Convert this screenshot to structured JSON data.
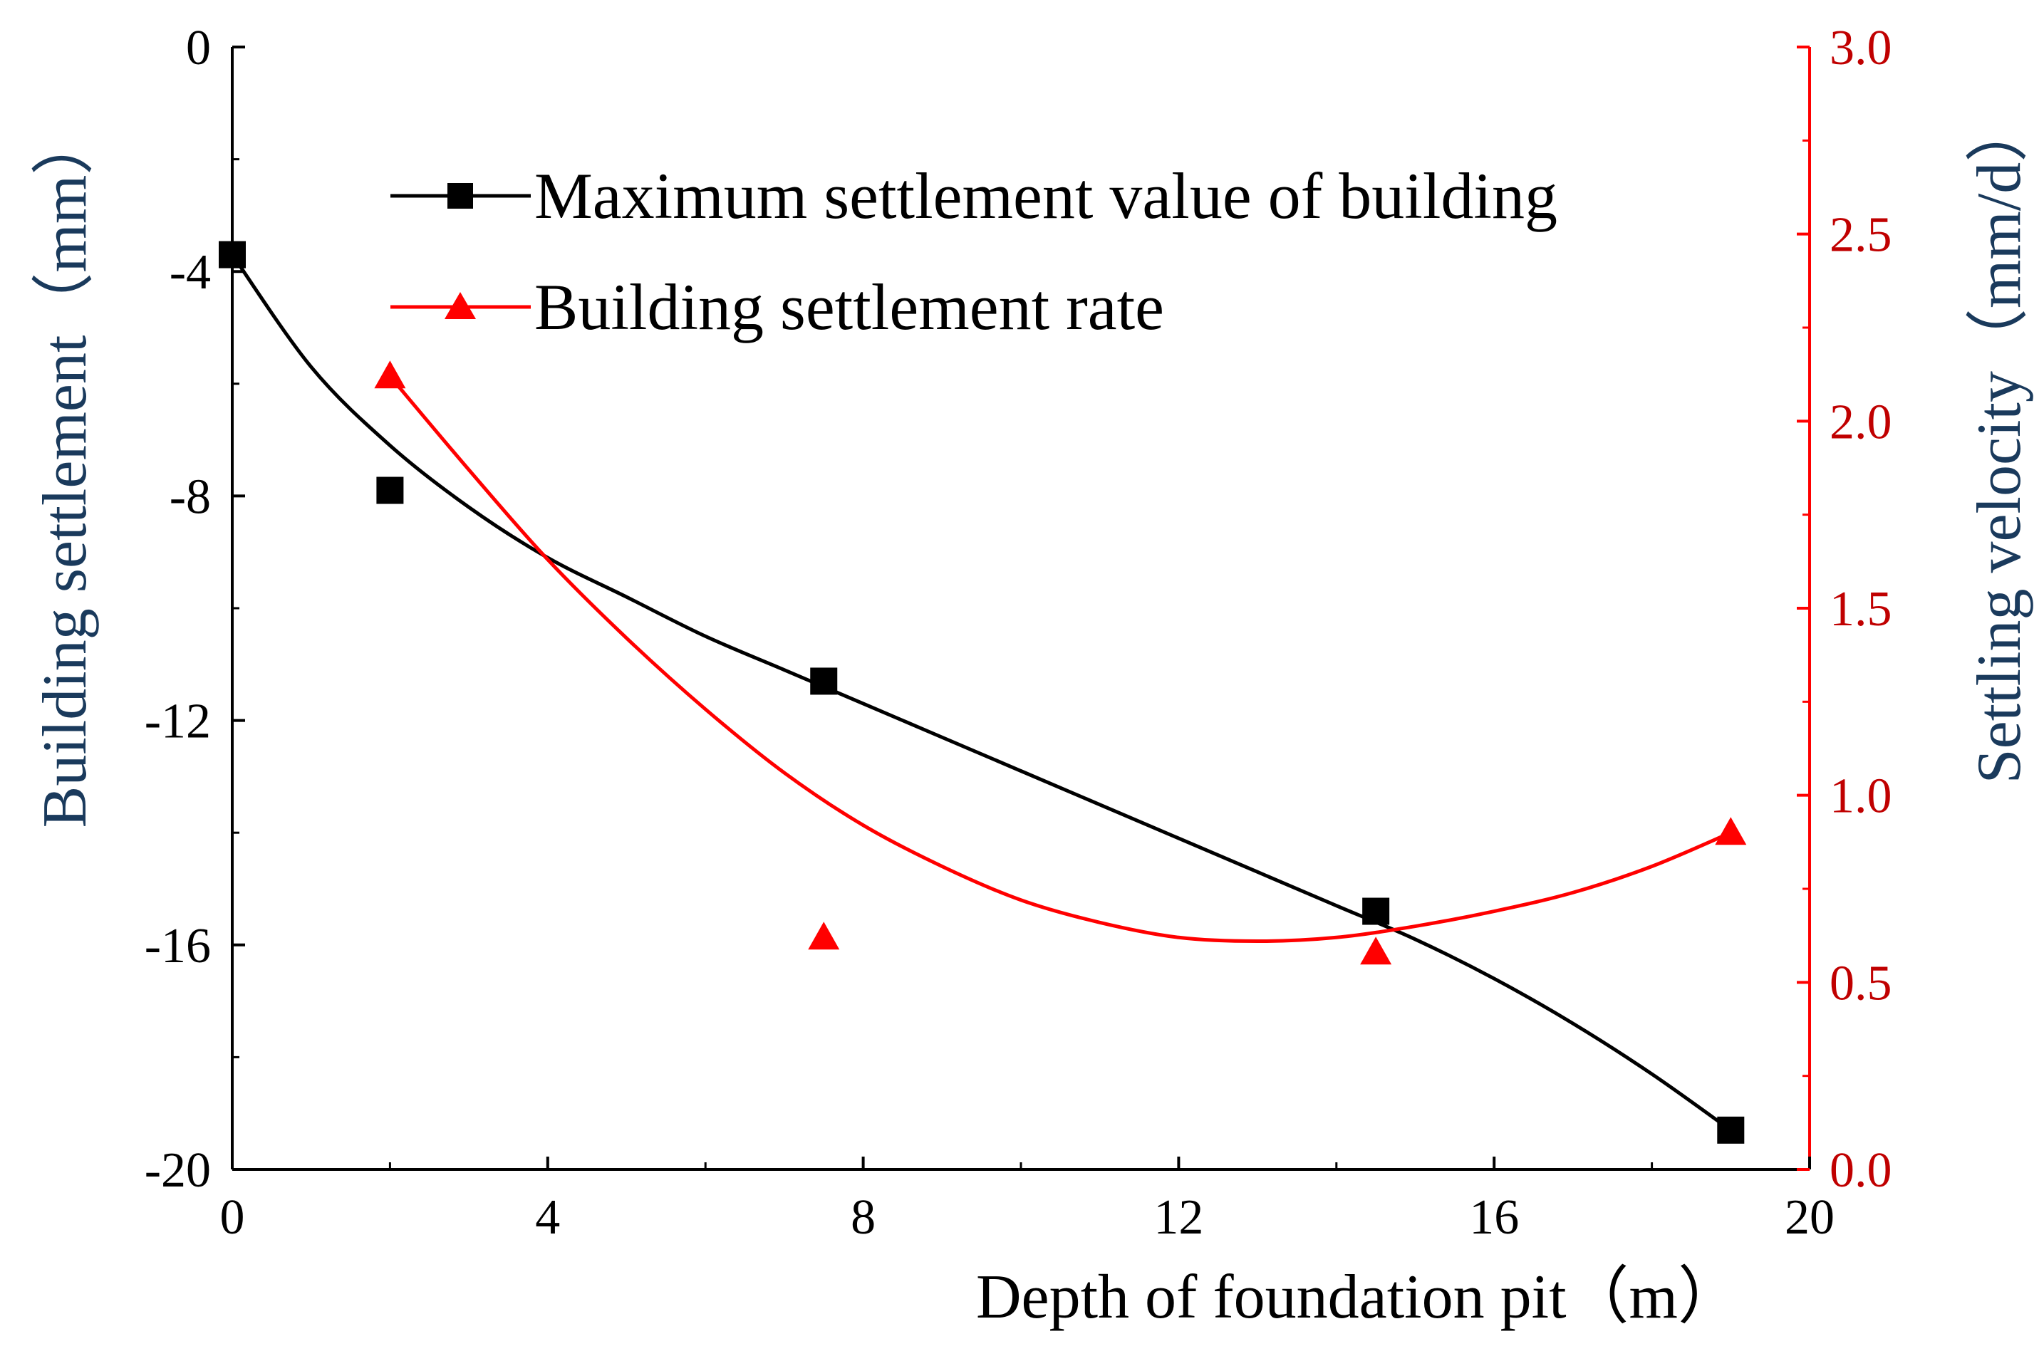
{
  "chart_data": {
    "type": "line",
    "xlabel": "Depth of foundation pit（m）",
    "ylabel_left": "Building settlement（mm）",
    "ylabel_right": "Settling velocity（mm/d）",
    "xlim": [
      0,
      20
    ],
    "ylim_left": [
      -20,
      0
    ],
    "ylim_right": [
      0.0,
      3.0
    ],
    "x_ticks": [
      "0",
      "4",
      "8",
      "12",
      "16",
      "20"
    ],
    "y_left_ticks": [
      "0",
      "-4",
      "-8",
      "-12",
      "-16",
      "-20"
    ],
    "y_right_ticks": [
      "3.0",
      "2.5",
      "2.0",
      "1.5",
      "1.0",
      "0.5",
      "0.0"
    ],
    "grid": false,
    "legend_position": "top-right",
    "series": [
      {
        "name": "Maximum settlement value of building",
        "axis": "left",
        "color": "#000000",
        "marker": "square",
        "x": [
          0,
          2,
          7.5,
          14.5,
          19
        ],
        "y": [
          -3.7,
          -7.9,
          -11.3,
          -15.4,
          -19.3
        ],
        "fit_x": [
          0,
          1,
          2,
          3,
          4,
          5,
          6,
          7,
          8,
          9,
          10,
          11,
          12,
          13,
          14,
          15,
          16,
          17,
          18,
          19
        ],
        "fit_y": [
          -3.7,
          -5.7,
          -7.1,
          -8.2,
          -9.1,
          -9.8,
          -10.5,
          -11.1,
          -11.7,
          -12.3,
          -12.9,
          -13.5,
          -14.1,
          -14.7,
          -15.3,
          -15.9,
          -16.6,
          -17.4,
          -18.3,
          -19.3
        ]
      },
      {
        "name": "Building settlement rate",
        "axis": "right",
        "color": "#ff0000",
        "marker": "triangle",
        "x": [
          2,
          7.5,
          14.5,
          19
        ],
        "y": [
          2.12,
          0.62,
          0.58,
          0.9
        ],
        "fit_x": [
          2,
          3,
          4,
          5,
          6,
          7,
          8,
          9,
          10,
          11,
          12,
          13,
          14,
          15,
          16,
          17,
          18,
          19
        ],
        "fit_y": [
          2.12,
          1.87,
          1.63,
          1.42,
          1.23,
          1.06,
          0.92,
          0.81,
          0.72,
          0.66,
          0.62,
          0.61,
          0.62,
          0.65,
          0.69,
          0.74,
          0.81,
          0.9
        ]
      }
    ]
  }
}
